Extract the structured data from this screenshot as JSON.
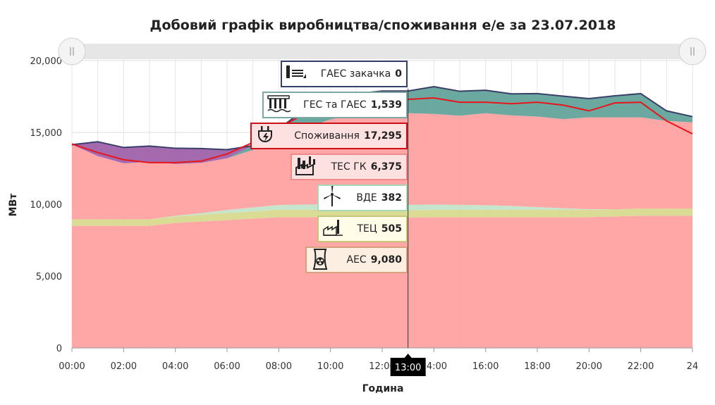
{
  "chart_data": {
    "type": "area",
    "title": "Добовий графік виробництва/споживання е/е за 23.07.2018",
    "xlabel": "Година",
    "ylabel": "МВт",
    "ylim": [
      0,
      20000
    ],
    "yticks": [
      "0",
      "5,000",
      "10,000",
      "15,000",
      "20,000"
    ],
    "xticks": [
      "00:00",
      "02:00",
      "04:00",
      "06:00",
      "08:00",
      "10:00",
      "12:00",
      "14:00",
      "16:00",
      "18:00",
      "20:00",
      "22:00",
      "24"
    ],
    "x_hours": [
      0,
      1,
      2,
      3,
      4,
      5,
      6,
      7,
      8,
      9,
      10,
      11,
      12,
      13,
      14,
      15,
      16,
      17,
      18,
      19,
      20,
      21,
      22,
      23,
      24
    ],
    "crosshair_label": "13:00",
    "stacked_series": [
      {
        "name": "АЕС",
        "color": "#ff9d9d",
        "values": [
          8500,
          8500,
          8500,
          8500,
          8700,
          8800,
          8900,
          9000,
          9100,
          9100,
          9100,
          9100,
          9080,
          9080,
          9100,
          9100,
          9100,
          9100,
          9100,
          9100,
          9100,
          9150,
          9200,
          9200,
          9200
        ]
      },
      {
        "name": "ТЕЦ",
        "color": "#d6d889",
        "values": [
          450,
          450,
          450,
          450,
          450,
          480,
          500,
          500,
          520,
          520,
          510,
          510,
          505,
          505,
          505,
          505,
          505,
          505,
          505,
          505,
          505,
          500,
          500,
          500,
          500
        ]
      },
      {
        "name": "ВДЕ",
        "color": "#bfe3c8",
        "values": [
          0,
          0,
          0,
          0,
          50,
          100,
          200,
          280,
          330,
          370,
          390,
          390,
          382,
          382,
          380,
          360,
          330,
          280,
          200,
          120,
          50,
          0,
          0,
          0,
          0
        ]
      },
      {
        "name": "ТЕС ГК",
        "color": "#ff9d9d",
        "values": [
          5200,
          4400,
          3900,
          4000,
          3600,
          3500,
          3600,
          4000,
          4500,
          5300,
          5900,
          6300,
          6375,
          6375,
          6300,
          6200,
          6400,
          6300,
          6300,
          6200,
          6400,
          6400,
          6350,
          6100,
          6000
        ]
      },
      {
        "name": "ГЕС та ГАЕС",
        "color": "#5a9e96",
        "values": [
          0,
          0,
          0,
          0,
          0,
          0,
          0,
          300,
          800,
          1300,
          1400,
          1400,
          1539,
          1539,
          1900,
          1700,
          1600,
          1500,
          1600,
          1600,
          1300,
          1500,
          1650,
          700,
          400
        ]
      },
      {
        "name": "ГАЕС закачка",
        "color": "#9b5aa5",
        "values": [
          0,
          1000,
          1100,
          1100,
          1100,
          1000,
          600,
          0,
          0,
          0,
          0,
          0,
          0,
          0,
          0,
          0,
          0,
          0,
          0,
          0,
          0,
          0,
          0,
          0,
          0
        ]
      }
    ],
    "consumption": {
      "name": "Споживання",
      "color": "#e8151b",
      "values": [
        14200,
        13600,
        13100,
        12900,
        12900,
        13000,
        13500,
        14300,
        15300,
        16300,
        16900,
        17100,
        17295,
        17295,
        17400,
        17100,
        17100,
        17000,
        17100,
        16900,
        16500,
        17050,
        17100,
        15800,
        14900
      ]
    },
    "tooltip_hour": 13,
    "tooltip": [
      {
        "label": "ГАЕС закачка",
        "value": "0",
        "icon": "pumped-storage-icon",
        "border": "#3a3f6a",
        "bg": "#ffffff"
      },
      {
        "label": "ГЕС та ГАЕС",
        "value": "1,539",
        "icon": "hydro-dam-icon",
        "border": "#7fa8a5",
        "bg": "#ffffff"
      },
      {
        "label": "Споживання",
        "value": "17,295",
        "icon": "plug-icon",
        "border": "#cc1118",
        "bg": "#fde0e0"
      },
      {
        "label": "ТЕС ГК",
        "value": "6,375",
        "icon": "thermal-plant-icon",
        "border": "#f08a8a",
        "bg": "#fde0e0"
      },
      {
        "label": "ВДЕ",
        "value": "382",
        "icon": "wind-turbine-icon",
        "border": "#a8d8b8",
        "bg": "#ffffff"
      },
      {
        "label": "ТЕЦ",
        "value": "505",
        "icon": "chp-plant-icon",
        "border": "#c8c47a",
        "bg": "#fffde8"
      },
      {
        "label": "АЕС",
        "value": "9,080",
        "icon": "nuclear-icon",
        "border": "#d7a07d",
        "bg": "#fdeee2"
      }
    ]
  }
}
